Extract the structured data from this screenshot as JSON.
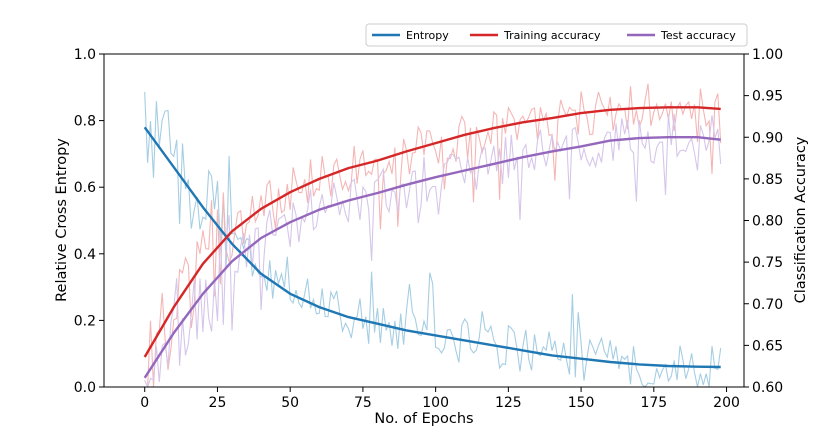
{
  "chart_data": {
    "type": "line",
    "xlabel": "No. of Epochs",
    "ylabel_left": "Relative Cross Entropy",
    "ylabel_right": "Classification Accuracy",
    "xlim": [
      -14,
      206
    ],
    "ylim_left": [
      0.0,
      1.0
    ],
    "ylim_right": [
      0.6,
      1.0
    ],
    "x_ticks": [
      0,
      25,
      50,
      75,
      100,
      125,
      150,
      175,
      200
    ],
    "y_ticks_left": [
      0.0,
      0.2,
      0.4,
      0.6,
      0.8,
      1.0
    ],
    "y_ticks_right": [
      0.6,
      0.65,
      0.7,
      0.75,
      0.8,
      0.85,
      0.9,
      0.95,
      1.0
    ],
    "y_tick_labels_left": [
      "0.0",
      "0.2",
      "0.4",
      "0.6",
      "0.8",
      "1.0"
    ],
    "y_tick_labels_right": [
      "0.60",
      "0.65",
      "0.70",
      "0.75",
      "0.80",
      "0.85",
      "0.90",
      "0.95",
      "1.00"
    ],
    "legend_position": "top-right",
    "series": [
      {
        "name": "Entropy",
        "axis": "left",
        "color": "#1f77b4",
        "raw_color": "#a6cee3",
        "x": [
          0,
          10,
          20,
          30,
          40,
          50,
          60,
          70,
          80,
          90,
          100,
          110,
          120,
          130,
          140,
          150,
          160,
          170,
          180,
          190,
          198
        ],
        "smoothed": [
          0.78,
          0.66,
          0.54,
          0.43,
          0.34,
          0.28,
          0.24,
          0.21,
          0.19,
          0.17,
          0.155,
          0.14,
          0.125,
          0.11,
          0.095,
          0.085,
          0.075,
          0.068,
          0.063,
          0.061,
          0.06
        ],
        "noise_amplitude": 0.07
      },
      {
        "name": "Training accuracy",
        "axis": "right",
        "color": "#d62728",
        "raw_color": "#f4b6b5",
        "x": [
          0,
          10,
          20,
          30,
          40,
          50,
          60,
          70,
          80,
          90,
          100,
          110,
          120,
          130,
          140,
          150,
          160,
          170,
          180,
          190,
          198
        ],
        "smoothed": [
          0.636,
          0.696,
          0.748,
          0.787,
          0.814,
          0.834,
          0.85,
          0.863,
          0.872,
          0.883,
          0.893,
          0.903,
          0.911,
          0.918,
          0.923,
          0.929,
          0.933,
          0.935,
          0.936,
          0.936,
          0.934
        ],
        "noise_amplitude": 0.03
      },
      {
        "name": "Test accuracy",
        "axis": "right",
        "color": "#9467bd",
        "raw_color": "#d6c6ea",
        "x": [
          0,
          10,
          20,
          30,
          40,
          50,
          60,
          70,
          80,
          90,
          100,
          110,
          120,
          130,
          140,
          150,
          160,
          170,
          180,
          190,
          198
        ],
        "smoothed": [
          0.611,
          0.665,
          0.712,
          0.751,
          0.779,
          0.798,
          0.813,
          0.824,
          0.833,
          0.843,
          0.852,
          0.86,
          0.868,
          0.876,
          0.883,
          0.889,
          0.896,
          0.899,
          0.9,
          0.9,
          0.897
        ],
        "noise_amplitude": 0.03
      }
    ]
  }
}
